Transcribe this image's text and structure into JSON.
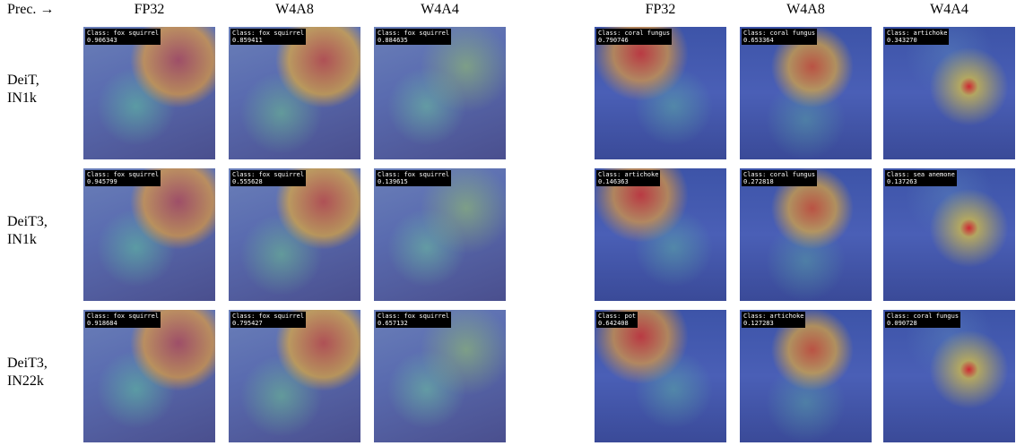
{
  "header": {
    "corner": "Prec. →",
    "columns": [
      "FP32",
      "W4A8",
      "W4A4",
      "FP32",
      "W4A8",
      "W4A4"
    ]
  },
  "rows": [
    {
      "label": [
        "DeiT,",
        "IN1k"
      ],
      "cells": [
        {
          "class": "Class: fox squirrel",
          "score": "0.906343"
        },
        {
          "class": "Class: fox squirrel",
          "score": "0.859411"
        },
        {
          "class": "Class: fox squirrel",
          "score": "0.884635"
        },
        {
          "class": "Class: coral fungus",
          "score": "0.790746"
        },
        {
          "class": "Class: coral fungus",
          "score": "0.653364"
        },
        {
          "class": "Class: artichoke",
          "score": "0.343270"
        }
      ]
    },
    {
      "label": [
        "DeiT3,",
        "IN1k"
      ],
      "cells": [
        {
          "class": "Class: fox squirrel",
          "score": "0.945799"
        },
        {
          "class": "Class: fox squirrel",
          "score": "0.555628"
        },
        {
          "class": "Class: fox squirrel",
          "score": "0.139615"
        },
        {
          "class": "Class: artichoke",
          "score": "0.146363"
        },
        {
          "class": "Class: coral fungus",
          "score": "0.272818"
        },
        {
          "class": "Class: sea anemone",
          "score": "0.137263"
        }
      ]
    },
    {
      "label": [
        "DeiT3,",
        "IN22k"
      ],
      "cells": [
        {
          "class": "Class: fox squirrel",
          "score": "0.918684"
        },
        {
          "class": "Class: fox squirrel",
          "score": "0.795427"
        },
        {
          "class": "Class: fox squirrel",
          "score": "0.657132"
        },
        {
          "class": "Class: pot",
          "score": "0.642408"
        },
        {
          "class": "Class: artichoke",
          "score": "0.127283"
        },
        {
          "class": "Class: coral fungus",
          "score": "0.090728"
        }
      ]
    }
  ]
}
